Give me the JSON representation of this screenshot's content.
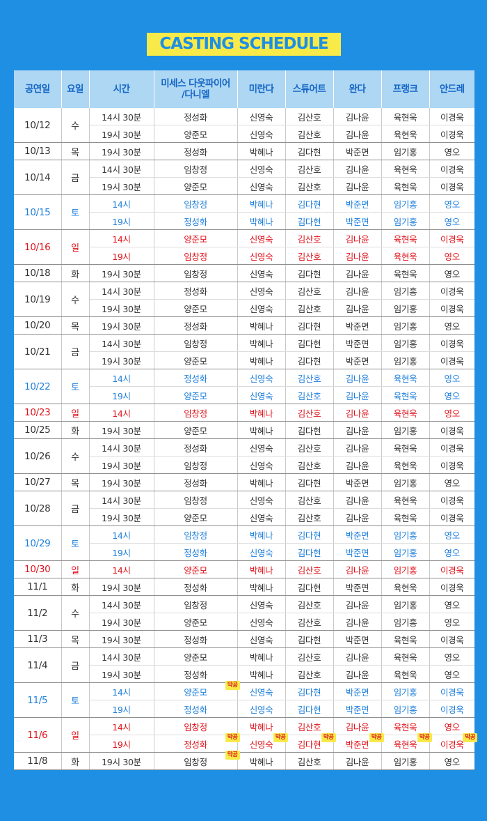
{
  "title": "CASTING SCHEDULE",
  "colors": {
    "background": "#1e8fe3",
    "title_bg": "#f7ea49",
    "header_bg": "#aed7f4",
    "header_text": "#1466c4",
    "saturday": "#1e7fdb",
    "sunday": "#e0141c",
    "badge_bg": "#f7ea49"
  },
  "badge_label": "막공",
  "headers": [
    "공연일",
    "요일",
    "시간",
    "미세스 다웃파이어\n/다니엘",
    "미란다",
    "스튜어트",
    "완다",
    "프랭크",
    "안드레"
  ],
  "groups": [
    {
      "date": "10/12",
      "day": "수",
      "color": "",
      "rows": [
        {
          "time": "14시 30분",
          "cast": [
            "정성화",
            "신영숙",
            "김산호",
            "김나윤",
            "육현욱",
            "이경욱"
          ]
        },
        {
          "time": "19시 30분",
          "cast": [
            "양준모",
            "신영숙",
            "김산호",
            "김나윤",
            "육현욱",
            "이경욱"
          ]
        }
      ]
    },
    {
      "date": "10/13",
      "day": "목",
      "color": "",
      "rows": [
        {
          "time": "19시 30분",
          "cast": [
            "정성화",
            "박혜나",
            "김다현",
            "박준면",
            "임기홍",
            "영오"
          ]
        }
      ]
    },
    {
      "date": "10/14",
      "day": "금",
      "color": "",
      "rows": [
        {
          "time": "14시 30분",
          "cast": [
            "임창정",
            "신영숙",
            "김산호",
            "김나윤",
            "육현욱",
            "이경욱"
          ]
        },
        {
          "time": "19시 30분",
          "cast": [
            "양준모",
            "신영숙",
            "김산호",
            "김나윤",
            "육현욱",
            "이경욱"
          ]
        }
      ]
    },
    {
      "date": "10/15",
      "day": "토",
      "color": "sat",
      "rows": [
        {
          "time": "14시",
          "cast": [
            "임창정",
            "박혜나",
            "김다현",
            "박준면",
            "임기홍",
            "영오"
          ]
        },
        {
          "time": "19시",
          "cast": [
            "정성화",
            "박혜나",
            "김다현",
            "박준면",
            "임기홍",
            "영오"
          ]
        }
      ]
    },
    {
      "date": "10/16",
      "day": "일",
      "color": "sun",
      "rows": [
        {
          "time": "14시",
          "cast": [
            "양준모",
            "신영숙",
            "김산호",
            "김나윤",
            "육현욱",
            "이경욱"
          ]
        },
        {
          "time": "19시",
          "cast": [
            "임창정",
            "신영숙",
            "김산호",
            "김나윤",
            "육현욱",
            "영오"
          ]
        }
      ]
    },
    {
      "date": "10/18",
      "day": "화",
      "color": "",
      "rows": [
        {
          "time": "19시 30분",
          "cast": [
            "임창정",
            "신영숙",
            "김다현",
            "김나윤",
            "육현욱",
            "영오"
          ]
        }
      ]
    },
    {
      "date": "10/19",
      "day": "수",
      "color": "",
      "rows": [
        {
          "time": "14시 30분",
          "cast": [
            "정성화",
            "신영숙",
            "김산호",
            "김나윤",
            "임기홍",
            "이경욱"
          ]
        },
        {
          "time": "19시 30분",
          "cast": [
            "양준모",
            "신영숙",
            "김산호",
            "김나윤",
            "임기홍",
            "이경욱"
          ]
        }
      ]
    },
    {
      "date": "10/20",
      "day": "목",
      "color": "",
      "rows": [
        {
          "time": "19시 30분",
          "cast": [
            "정성화",
            "박혜나",
            "김다현",
            "박준면",
            "임기홍",
            "영오"
          ]
        }
      ]
    },
    {
      "date": "10/21",
      "day": "금",
      "color": "",
      "rows": [
        {
          "time": "14시 30분",
          "cast": [
            "임창정",
            "박혜나",
            "김다현",
            "박준면",
            "임기홍",
            "이경욱"
          ]
        },
        {
          "time": "19시 30분",
          "cast": [
            "양준모",
            "박혜나",
            "김다현",
            "박준면",
            "임기홍",
            "이경욱"
          ]
        }
      ]
    },
    {
      "date": "10/22",
      "day": "토",
      "color": "sat",
      "rows": [
        {
          "time": "14시",
          "cast": [
            "정성화",
            "신영숙",
            "김산호",
            "김나윤",
            "육현욱",
            "영오"
          ]
        },
        {
          "time": "19시",
          "cast": [
            "양준모",
            "신영숙",
            "김산호",
            "김나윤",
            "육현욱",
            "영오"
          ]
        }
      ]
    },
    {
      "date": "10/23",
      "day": "일",
      "color": "sun",
      "rows": [
        {
          "time": "14시",
          "cast": [
            "임창정",
            "박혜나",
            "김산호",
            "김나윤",
            "육현욱",
            "영오"
          ]
        }
      ]
    },
    {
      "date": "10/25",
      "day": "화",
      "color": "",
      "rows": [
        {
          "time": "19시 30분",
          "cast": [
            "양준모",
            "박혜나",
            "김다현",
            "김나윤",
            "임기홍",
            "이경욱"
          ]
        }
      ]
    },
    {
      "date": "10/26",
      "day": "수",
      "color": "",
      "rows": [
        {
          "time": "14시 30분",
          "cast": [
            "정성화",
            "신영숙",
            "김산호",
            "김나윤",
            "육현욱",
            "이경욱"
          ]
        },
        {
          "time": "19시 30분",
          "cast": [
            "임창정",
            "신영숙",
            "김산호",
            "김나윤",
            "육현욱",
            "이경욱"
          ]
        }
      ]
    },
    {
      "date": "10/27",
      "day": "목",
      "color": "",
      "rows": [
        {
          "time": "19시 30분",
          "cast": [
            "정성화",
            "박혜나",
            "김다현",
            "박준면",
            "임기홍",
            "영오"
          ]
        }
      ]
    },
    {
      "date": "10/28",
      "day": "금",
      "color": "",
      "rows": [
        {
          "time": "14시 30분",
          "cast": [
            "임창정",
            "신영숙",
            "김산호",
            "김나윤",
            "육현욱",
            "이경욱"
          ]
        },
        {
          "time": "19시 30분",
          "cast": [
            "양준모",
            "신영숙",
            "김산호",
            "김나윤",
            "육현욱",
            "이경욱"
          ]
        }
      ]
    },
    {
      "date": "10/29",
      "day": "토",
      "color": "sat",
      "rows": [
        {
          "time": "14시",
          "cast": [
            "임창정",
            "박혜나",
            "김다현",
            "박준면",
            "임기홍",
            "영오"
          ]
        },
        {
          "time": "19시",
          "cast": [
            "정성화",
            "신영숙",
            "김다현",
            "박준면",
            "임기홍",
            "영오"
          ]
        }
      ]
    },
    {
      "date": "10/30",
      "day": "일",
      "color": "sun",
      "rows": [
        {
          "time": "14시",
          "cast": [
            "양준모",
            "박혜나",
            "김산호",
            "김나윤",
            "임기홍",
            "이경욱"
          ]
        }
      ]
    },
    {
      "date": "11/1",
      "day": "화",
      "color": "",
      "rows": [
        {
          "time": "19시 30분",
          "cast": [
            "정성화",
            "박혜나",
            "김다현",
            "박준면",
            "육현욱",
            "이경욱"
          ]
        }
      ]
    },
    {
      "date": "11/2",
      "day": "수",
      "color": "",
      "rows": [
        {
          "time": "14시 30분",
          "cast": [
            "임창정",
            "신영숙",
            "김산호",
            "김나윤",
            "임기홍",
            "영오"
          ]
        },
        {
          "time": "19시 30분",
          "cast": [
            "양준모",
            "신영숙",
            "김산호",
            "김나윤",
            "임기홍",
            "영오"
          ]
        }
      ]
    },
    {
      "date": "11/3",
      "day": "목",
      "color": "",
      "rows": [
        {
          "time": "19시 30분",
          "cast": [
            "정성화",
            "신영숙",
            "김다현",
            "박준면",
            "육현욱",
            "이경욱"
          ]
        }
      ]
    },
    {
      "date": "11/4",
      "day": "금",
      "color": "",
      "rows": [
        {
          "time": "14시 30분",
          "cast": [
            "양준모",
            "박혜나",
            "김산호",
            "김나윤",
            "육현욱",
            "영오"
          ]
        },
        {
          "time": "19시 30분",
          "cast": [
            "정성화",
            "박혜나",
            "김산호",
            "김나윤",
            "육현욱",
            "영오"
          ]
        }
      ]
    },
    {
      "date": "11/5",
      "day": "토",
      "color": "sat",
      "rows": [
        {
          "time": "14시",
          "cast": [
            "양준모",
            "신영숙",
            "김다현",
            "박준면",
            "임기홍",
            "이경욱"
          ],
          "badges": [
            0
          ]
        },
        {
          "time": "19시",
          "cast": [
            "정성화",
            "신영숙",
            "김다현",
            "박준면",
            "임기홍",
            "이경욱"
          ]
        }
      ]
    },
    {
      "date": "11/6",
      "day": "일",
      "color": "sun",
      "rows": [
        {
          "time": "14시",
          "cast": [
            "임창정",
            "박혜나",
            "김산호",
            "김나윤",
            "육현욱",
            "영오"
          ]
        },
        {
          "time": "19시",
          "cast": [
            "정성화",
            "신영숙",
            "김다현",
            "박준면",
            "육현욱",
            "이경욱"
          ],
          "badges": [
            0,
            1,
            2,
            3,
            4,
            5
          ]
        }
      ]
    },
    {
      "date": "11/8",
      "day": "화",
      "color": "",
      "rows": [
        {
          "time": "19시 30분",
          "cast": [
            "임창정",
            "박혜나",
            "김산호",
            "김나윤",
            "임기홍",
            "영오"
          ],
          "badges": [
            0
          ]
        }
      ]
    }
  ]
}
